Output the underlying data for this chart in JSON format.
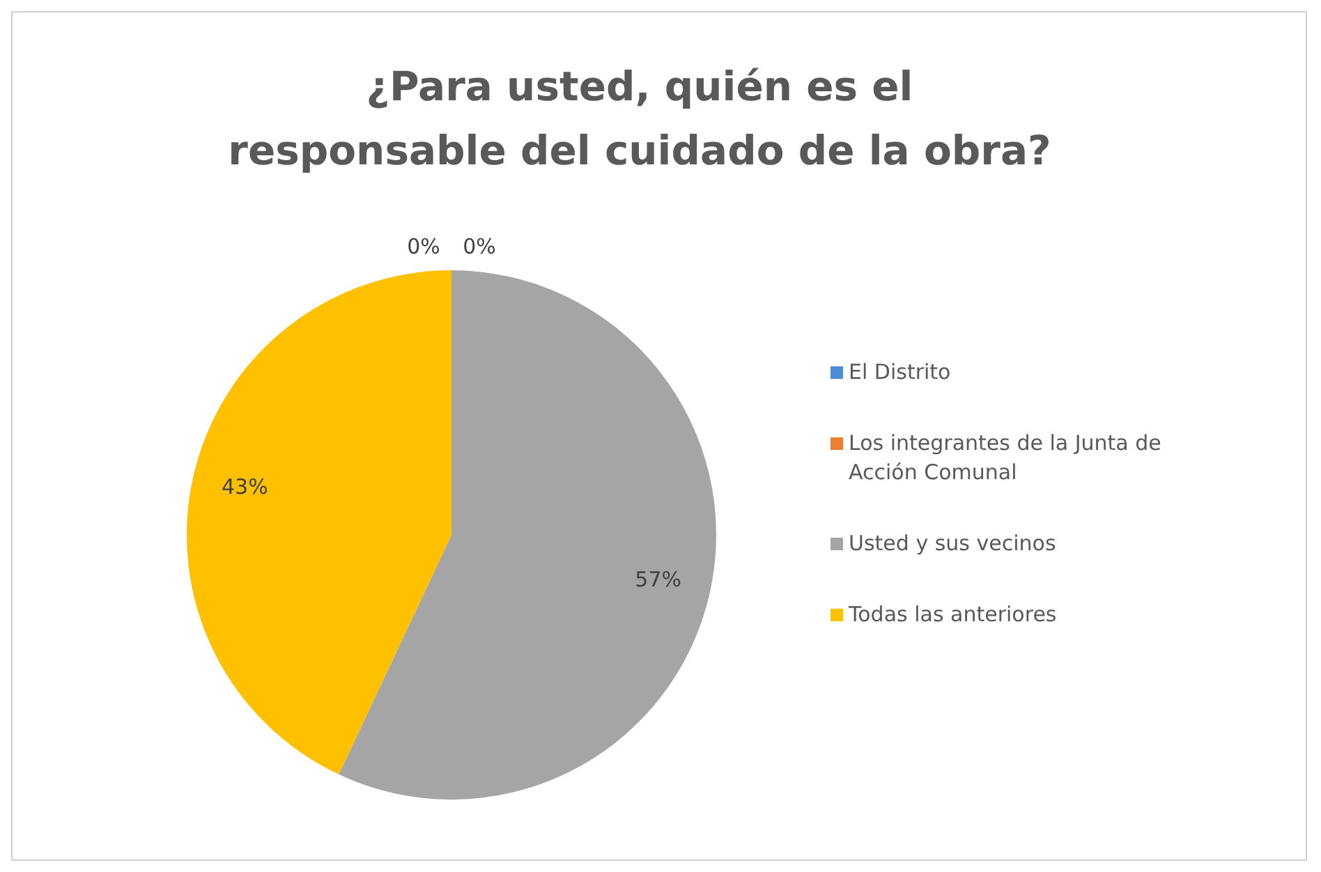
{
  "chart_data": {
    "type": "pie",
    "title": "¿Para usted, quién es el responsable del cuidado de la obra?",
    "categories": [
      "El Distrito",
      "Los integrantes de la Junta de Acción Comunal",
      "Usted y sus vecinos",
      "Todas las anteriores"
    ],
    "values": [
      0,
      0,
      57,
      43
    ],
    "value_labels": [
      "0%",
      "0%",
      "57%",
      "43%"
    ],
    "colors": [
      "#4a8ed8",
      "#ed7d31",
      "#a5a5a5",
      "#ffc000"
    ],
    "legend": "right"
  }
}
